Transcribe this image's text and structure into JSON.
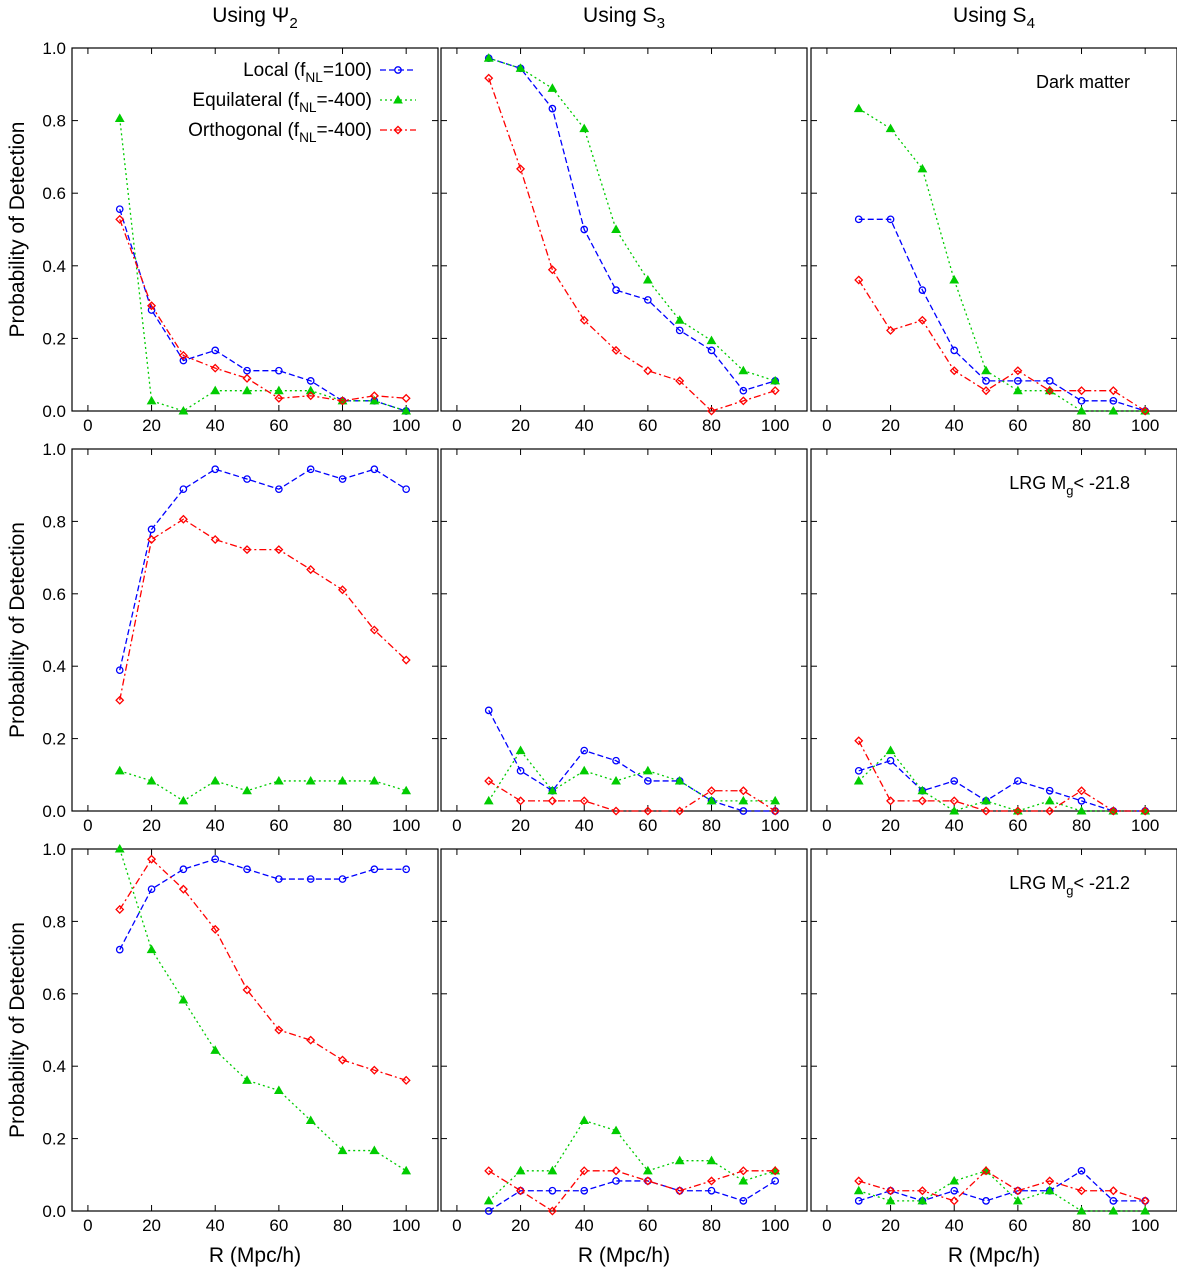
{
  "columns": [
    {
      "title": "Using Ψ",
      "sub": "2"
    },
    {
      "title": "Using S",
      "sub": "3"
    },
    {
      "title": "Using S",
      "sub": "4"
    }
  ],
  "xlabel": "R (Mpc/h)",
  "ylabel": "Probability of Detection",
  "xticks": [
    0,
    20,
    40,
    60,
    80,
    100
  ],
  "yticks": [
    "0.0",
    "0.2",
    "0.4",
    "0.6",
    "0.8",
    "1.0"
  ],
  "xlim": [
    -5,
    110
  ],
  "ylim": [
    0,
    1
  ],
  "legend": [
    {
      "key": "local",
      "pre": "Local (f",
      "sub": "NL",
      "post": "=100)"
    },
    {
      "key": "equilateral",
      "pre": "Equilateral (f",
      "sub": "NL",
      "post": "=-400)"
    },
    {
      "key": "orthogonal",
      "pre": "Orthogonal (f",
      "sub": "NL",
      "post": "=-400)"
    }
  ],
  "row_labels": [
    {
      "pre": "Dark matter",
      "sub": "",
      "post": ""
    },
    {
      "pre": "LRG M",
      "sub": "g",
      "post": "< -21.8"
    },
    {
      "pre": "LRG M",
      "sub": "g",
      "post": "< -21.2"
    }
  ],
  "colors": {
    "local": "#0000ff",
    "equilateral": "#00cc00",
    "orthogonal": "#ff0000"
  },
  "chart_data": {
    "type": "line",
    "x": [
      10,
      20,
      30,
      40,
      50,
      60,
      70,
      80,
      90,
      100
    ],
    "panels": [
      {
        "row": 0,
        "col": 0,
        "series": [
          {
            "name": "Local (fNL=100)",
            "key": "local",
            "values": [
              0.556,
              0.278,
              0.139,
              0.167,
              0.111,
              0.111,
              0.083,
              0.028,
              0.028,
              0.0
            ]
          },
          {
            "name": "Equilateral (fNL=-400)",
            "key": "equilateral",
            "values": [
              0.806,
              0.028,
              0.0,
              0.056,
              0.056,
              0.056,
              0.056,
              0.028,
              0.028,
              0.0
            ]
          },
          {
            "name": "Orthogonal (fNL=-400)",
            "key": "orthogonal",
            "values": [
              0.528,
              0.29,
              0.153,
              0.118,
              0.09,
              0.035,
              0.042,
              0.028,
              0.042,
              0.035
            ]
          }
        ]
      },
      {
        "row": 0,
        "col": 1,
        "series": [
          {
            "name": "Local (fNL=100)",
            "key": "local",
            "values": [
              0.972,
              0.944,
              0.833,
              0.5,
              0.333,
              0.306,
              0.222,
              0.167,
              0.056,
              0.083
            ]
          },
          {
            "name": "Equilateral (fNL=-400)",
            "key": "equilateral",
            "values": [
              0.972,
              0.944,
              0.889,
              0.778,
              0.5,
              0.361,
              0.25,
              0.194,
              0.111,
              0.083
            ]
          },
          {
            "name": "Orthogonal (fNL=-400)",
            "key": "orthogonal",
            "values": [
              0.917,
              0.667,
              0.389,
              0.25,
              0.167,
              0.111,
              0.083,
              0.0,
              0.028,
              0.056
            ]
          }
        ]
      },
      {
        "row": 0,
        "col": 2,
        "series": [
          {
            "name": "Local (fNL=100)",
            "key": "local",
            "values": [
              0.528,
              0.528,
              0.333,
              0.167,
              0.083,
              0.083,
              0.083,
              0.028,
              0.028,
              0.0
            ]
          },
          {
            "name": "Equilateral (fNL=-400)",
            "key": "equilateral",
            "values": [
              0.833,
              0.778,
              0.667,
              0.361,
              0.111,
              0.056,
              0.056,
              0.0,
              0.0,
              0.0
            ]
          },
          {
            "name": "Orthogonal (fNL=-400)",
            "key": "orthogonal",
            "values": [
              0.361,
              0.222,
              0.25,
              0.111,
              0.056,
              0.111,
              0.056,
              0.056,
              0.056,
              0.0
            ]
          }
        ]
      },
      {
        "row": 1,
        "col": 0,
        "series": [
          {
            "name": "Local (fNL=100)",
            "key": "local",
            "values": [
              0.389,
              0.778,
              0.889,
              0.944,
              0.917,
              0.889,
              0.944,
              0.917,
              0.944,
              0.889
            ]
          },
          {
            "name": "Equilateral (fNL=-400)",
            "key": "equilateral",
            "values": [
              0.111,
              0.083,
              0.028,
              0.083,
              0.056,
              0.083,
              0.083,
              0.083,
              0.083,
              0.056
            ]
          },
          {
            "name": "Orthogonal (fNL=-400)",
            "key": "orthogonal",
            "values": [
              0.306,
              0.75,
              0.806,
              0.75,
              0.722,
              0.722,
              0.667,
              0.611,
              0.5,
              0.417
            ]
          }
        ]
      },
      {
        "row": 1,
        "col": 1,
        "series": [
          {
            "name": "Local (fNL=100)",
            "key": "local",
            "values": [
              0.278,
              0.111,
              0.056,
              0.167,
              0.139,
              0.083,
              0.083,
              0.028,
              0.0,
              0.0
            ]
          },
          {
            "name": "Equilateral (fNL=-400)",
            "key": "equilateral",
            "values": [
              0.028,
              0.167,
              0.056,
              0.111,
              0.083,
              0.111,
              0.083,
              0.028,
              0.028,
              0.028
            ]
          },
          {
            "name": "Orthogonal (fNL=-400)",
            "key": "orthogonal",
            "values": [
              0.083,
              0.028,
              0.028,
              0.028,
              0.0,
              0.0,
              0.0,
              0.056,
              0.056,
              0.0
            ]
          }
        ]
      },
      {
        "row": 1,
        "col": 2,
        "series": [
          {
            "name": "Local (fNL=100)",
            "key": "local",
            "values": [
              0.111,
              0.139,
              0.056,
              0.083,
              0.028,
              0.083,
              0.056,
              0.028,
              0.0,
              0.0
            ]
          },
          {
            "name": "Equilateral (fNL=-400)",
            "key": "equilateral",
            "values": [
              0.083,
              0.167,
              0.056,
              0.0,
              0.028,
              0.0,
              0.028,
              0.0,
              0.0,
              0.0
            ]
          },
          {
            "name": "Orthogonal (fNL=-400)",
            "key": "orthogonal",
            "values": [
              0.194,
              0.028,
              0.028,
              0.028,
              0.0,
              0.0,
              0.0,
              0.056,
              0.0,
              0.0
            ]
          }
        ]
      },
      {
        "row": 2,
        "col": 0,
        "series": [
          {
            "name": "Local (fNL=100)",
            "key": "local",
            "values": [
              0.722,
              0.889,
              0.944,
              0.972,
              0.944,
              0.917,
              0.917,
              0.917,
              0.944,
              0.944
            ]
          },
          {
            "name": "Equilateral (fNL=-400)",
            "key": "equilateral",
            "values": [
              1.0,
              0.722,
              0.583,
              0.444,
              0.361,
              0.333,
              0.25,
              0.167,
              0.167,
              0.111
            ]
          },
          {
            "name": "Orthogonal (fNL=-400)",
            "key": "orthogonal",
            "values": [
              0.833,
              0.972,
              0.889,
              0.778,
              0.611,
              0.5,
              0.472,
              0.417,
              0.389,
              0.361
            ]
          }
        ]
      },
      {
        "row": 2,
        "col": 1,
        "series": [
          {
            "name": "Local (fNL=100)",
            "key": "local",
            "values": [
              0.0,
              0.056,
              0.056,
              0.056,
              0.083,
              0.083,
              0.056,
              0.056,
              0.028,
              0.083
            ]
          },
          {
            "name": "Equilateral (fNL=-400)",
            "key": "equilateral",
            "values": [
              0.028,
              0.111,
              0.111,
              0.25,
              0.222,
              0.111,
              0.139,
              0.139,
              0.083,
              0.111
            ]
          },
          {
            "name": "Orthogonal (fNL=-400)",
            "key": "orthogonal",
            "values": [
              0.111,
              0.056,
              0.0,
              0.111,
              0.111,
              0.083,
              0.056,
              0.083,
              0.111,
              0.111
            ]
          }
        ]
      },
      {
        "row": 2,
        "col": 2,
        "series": [
          {
            "name": "Local (fNL=100)",
            "key": "local",
            "values": [
              0.028,
              0.056,
              0.028,
              0.056,
              0.028,
              0.056,
              0.056,
              0.111,
              0.028,
              0.028
            ]
          },
          {
            "name": "Equilateral (fNL=-400)",
            "key": "equilateral",
            "values": [
              0.056,
              0.028,
              0.028,
              0.083,
              0.111,
              0.028,
              0.056,
              0.0,
              0.0,
              0.0
            ]
          },
          {
            "name": "Orthogonal (fNL=-400)",
            "key": "orthogonal",
            "values": [
              0.083,
              0.056,
              0.056,
              0.028,
              0.111,
              0.056,
              0.083,
              0.056,
              0.056,
              0.028
            ]
          }
        ]
      }
    ]
  }
}
